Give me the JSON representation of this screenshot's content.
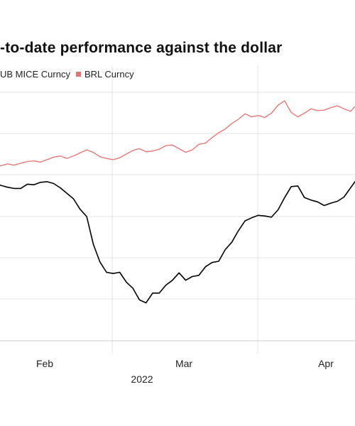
{
  "chart_data": {
    "type": "line",
    "title": "-to-date performance against the dollar",
    "legend_position": "top-left",
    "grid": "horizontal",
    "x_ticks": [
      "Feb",
      "Mar",
      "Apr"
    ],
    "x_group_label": "2022",
    "series": [
      {
        "name": "UB MICE Curncy",
        "color": "#000000",
        "points": [
          [
            0,
            258
          ],
          [
            3,
            254
          ],
          [
            6,
            251
          ],
          [
            9,
            249
          ],
          [
            12,
            249
          ],
          [
            15,
            256
          ],
          [
            18,
            255
          ],
          [
            21,
            259
          ],
          [
            24,
            260
          ],
          [
            27,
            257
          ],
          [
            30,
            250
          ],
          [
            33,
            241
          ],
          [
            36,
            232
          ],
          [
            39,
            215
          ],
          [
            42,
            203
          ],
          [
            45,
            158
          ],
          [
            48,
            129
          ],
          [
            51,
            112
          ],
          [
            54,
            110
          ],
          [
            57,
            112
          ],
          [
            60,
            96
          ],
          [
            63,
            86
          ],
          [
            66,
            67
          ],
          [
            69,
            62
          ],
          [
            72,
            78
          ],
          [
            75,
            78
          ],
          [
            78,
            91
          ],
          [
            81,
            99
          ],
          [
            84,
            111
          ],
          [
            87,
            99
          ],
          [
            90,
            105
          ],
          [
            93,
            107
          ],
          [
            96,
            121
          ],
          [
            99,
            128
          ],
          [
            102,
            130
          ],
          [
            105,
            149
          ],
          [
            108,
            161
          ],
          [
            111,
            180
          ],
          [
            114,
            196
          ],
          [
            117,
            201
          ],
          [
            120,
            205
          ],
          [
            123,
            204
          ],
          [
            126,
            202
          ],
          [
            129,
            214
          ],
          [
            132,
            234
          ],
          [
            135,
            252
          ],
          [
            138,
            253
          ],
          [
            141,
            234
          ],
          [
            144,
            230
          ],
          [
            147,
            227
          ],
          [
            150,
            221
          ],
          [
            153,
            225
          ],
          [
            156,
            228
          ],
          [
            159,
            235
          ],
          [
            162,
            250
          ],
          [
            164,
            260
          ]
        ]
      },
      {
        "name": "BRL Curncy",
        "color": "#e8706e",
        "points": [
          [
            0,
            284
          ],
          [
            3,
            286
          ],
          [
            6,
            289
          ],
          [
            9,
            287
          ],
          [
            12,
            290
          ],
          [
            15,
            293
          ],
          [
            18,
            294
          ],
          [
            21,
            292
          ],
          [
            24,
            296
          ],
          [
            27,
            300
          ],
          [
            30,
            302
          ],
          [
            33,
            298
          ],
          [
            36,
            302
          ],
          [
            39,
            307
          ],
          [
            42,
            312
          ],
          [
            45,
            308
          ],
          [
            48,
            301
          ],
          [
            51,
            298
          ],
          [
            54,
            296
          ],
          [
            57,
            299
          ],
          [
            60,
            305
          ],
          [
            63,
            311
          ],
          [
            66,
            314
          ],
          [
            69,
            309
          ],
          [
            72,
            310
          ],
          [
            75,
            313
          ],
          [
            78,
            319
          ],
          [
            81,
            320
          ],
          [
            84,
            314
          ],
          [
            87,
            308
          ],
          [
            90,
            312
          ],
          [
            93,
            321
          ],
          [
            96,
            323
          ],
          [
            99,
            332
          ],
          [
            102,
            340
          ],
          [
            105,
            346
          ],
          [
            108,
            355
          ],
          [
            111,
            362
          ],
          [
            114,
            371
          ],
          [
            117,
            366
          ],
          [
            120,
            368
          ],
          [
            123,
            365
          ],
          [
            126,
            372
          ],
          [
            129,
            385
          ],
          [
            132,
            392
          ],
          [
            135,
            373
          ],
          [
            138,
            366
          ],
          [
            141,
            372
          ],
          [
            144,
            379
          ],
          [
            147,
            376
          ],
          [
            150,
            377
          ],
          [
            153,
            381
          ],
          [
            156,
            384
          ],
          [
            159,
            379
          ],
          [
            162,
            375
          ],
          [
            164,
            383
          ]
        ]
      }
    ]
  }
}
